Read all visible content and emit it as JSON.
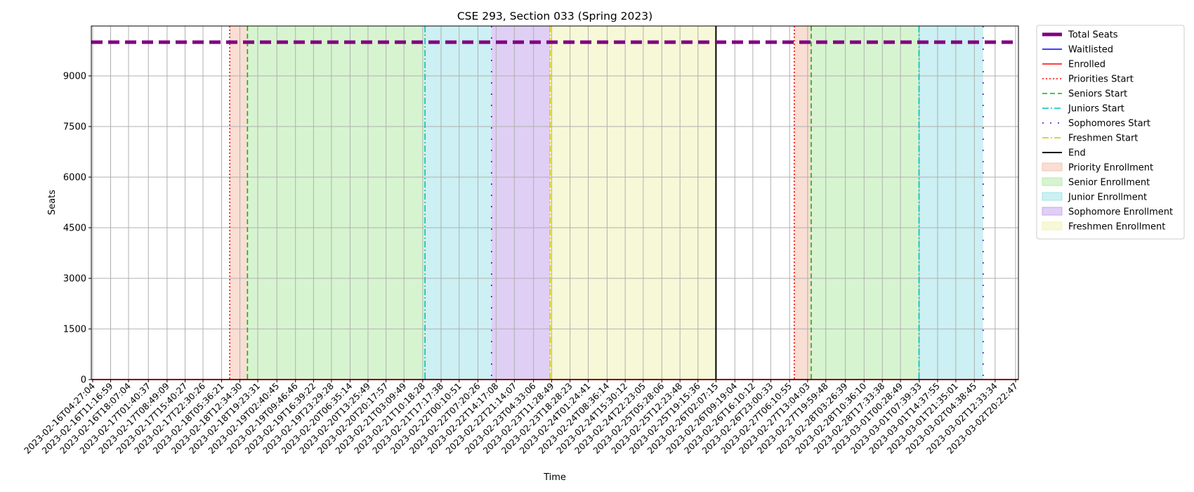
{
  "chart_data": {
    "type": "line",
    "title": "CSE 293, Section 033 (Spring 2023)",
    "xlabel": "Time",
    "ylabel": "Seats",
    "ylim": [
      0,
      10000
    ],
    "yticks": [
      0,
      1500,
      3000,
      4500,
      6000,
      7500,
      9000
    ],
    "grid": true,
    "legend_position": "outside-right",
    "xticks": [
      "2023-02-16T04:27:04",
      "2023-02-16T11:16:59",
      "2023-02-16T18:07:04",
      "2023-02-17T01:40:37",
      "2023-02-17T08:49:09",
      "2023-02-17T15:40:27",
      "2023-02-17T22:30:26",
      "2023-02-18T05:36:21",
      "2023-02-18T12:34:30",
      "2023-02-18T19:23:31",
      "2023-02-19T02:40:45",
      "2023-02-19T09:46:46",
      "2023-02-19T16:39:22",
      "2023-02-19T23:29:28",
      "2023-02-20T06:35:14",
      "2023-02-20T13:25:49",
      "2023-02-20T20:17:57",
      "2023-02-21T03:09:49",
      "2023-02-21T10:18:28",
      "2023-02-21T17:17:38",
      "2023-02-22T00:10:51",
      "2023-02-22T07:20:26",
      "2023-02-22T14:17:08",
      "2023-02-22T21:14:07",
      "2023-02-23T04:33:06",
      "2023-02-23T11:28:49",
      "2023-02-23T18:28:23",
      "2023-02-24T01:24:41",
      "2023-02-24T08:36:14",
      "2023-02-24T15:30:12",
      "2023-02-24T22:23:05",
      "2023-02-25T05:28:06",
      "2023-02-25T12:23:48",
      "2023-02-25T19:15:36",
      "2023-02-26T02:07:15",
      "2023-02-26T09:19:04",
      "2023-02-26T16:10:12",
      "2023-02-26T23:00:33",
      "2023-02-27T06:10:55",
      "2023-02-27T13:04:03",
      "2023-02-27T19:59:48",
      "2023-02-28T03:26:39",
      "2023-02-28T10:36:10",
      "2023-02-28T17:33:38",
      "2023-03-01T00:28:49",
      "2023-03-01T07:39:33",
      "2023-03-01T14:37:55",
      "2023-03-01T21:35:01",
      "2023-03-02T04:38:45",
      "2023-03-02T12:33:34",
      "2023-03-02T20:22:47"
    ],
    "series": [
      {
        "name": "Total Seats",
        "color": "#800080",
        "style": "dashed",
        "y_constant": 10000
      },
      {
        "name": "Waitlisted",
        "color": "#0000ff",
        "style": "solid",
        "y_constant": 0
      },
      {
        "name": "Enrolled",
        "color": "#ff0000",
        "style": "solid",
        "y_constant": 0
      }
    ],
    "markers": [
      {
        "name": "Priorities Start",
        "color": "#ff0000",
        "style": "dotted",
        "at": [
          "2023-02-18T08:43:00",
          "2023-02-27T07:58:00"
        ]
      },
      {
        "name": "Seniors Start",
        "color": "#00bb00",
        "style": "dashed",
        "at": [
          "2023-02-18T15:28:00",
          "2023-02-27T14:26:00"
        ]
      },
      {
        "name": "Juniors Start",
        "color": "#00bfc4",
        "style": "dashdot",
        "at": [
          "2023-02-21T11:10:00",
          "2023-03-01T07:32:00"
        ]
      },
      {
        "name": "Sophomores Start",
        "color": "#6600cc",
        "style": "loosedot",
        "at": [
          "2023-02-22T12:32:00",
          "2023-03-02T07:59:00"
        ]
      },
      {
        "name": "Freshmen Start",
        "color": "#d4c400",
        "style": "dashdot",
        "at": [
          "2023-02-23T10:55:00"
        ]
      },
      {
        "name": "End",
        "color": "#000000",
        "style": "solid",
        "at": [
          "2023-02-26T02:07:15"
        ]
      }
    ],
    "spans": [
      {
        "name": "Priority Enrollment",
        "color": "#f4c2b0",
        "ranges": [
          [
            "2023-02-18T08:43:00",
            "2023-02-18T15:28:00"
          ],
          [
            "2023-02-27T07:58:00",
            "2023-02-27T14:26:00"
          ]
        ]
      },
      {
        "name": "Senior Enrollment",
        "color": "#b7ebaa",
        "ranges": [
          [
            "2023-02-18T15:28:00",
            "2023-02-21T11:10:00"
          ],
          [
            "2023-02-27T14:26:00",
            "2023-03-01T07:32:00"
          ]
        ]
      },
      {
        "name": "Junior Enrollment",
        "color": "#a2e4ea",
        "ranges": [
          [
            "2023-02-21T11:10:00",
            "2023-02-22T12:32:00"
          ],
          [
            "2023-03-01T07:32:00",
            "2023-03-02T07:59:00"
          ]
        ]
      },
      {
        "name": "Sophomore Enrollment",
        "color": "#c4a8ec",
        "ranges": [
          [
            "2023-02-22T12:32:00",
            "2023-02-23T10:55:00"
          ]
        ]
      },
      {
        "name": "Freshmen Enrollment",
        "color": "#f1f2b6",
        "ranges": [
          [
            "2023-02-23T10:55:00",
            "2023-02-26T02:07:15"
          ]
        ]
      }
    ]
  }
}
